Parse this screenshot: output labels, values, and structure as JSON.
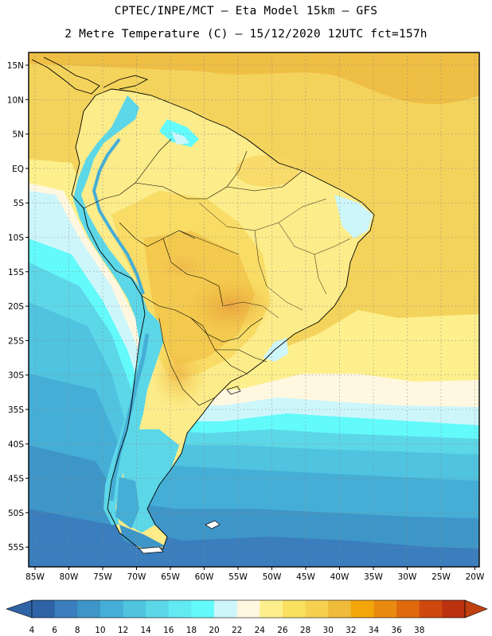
{
  "title_line1": "CPTEC/INPE/MCT –  Eta Model 15km – GFS",
  "title_line2": "2 Metre Temperature (C) – 15/12/2020 12UTC fct=157h",
  "lat_ticks": [
    "15N",
    "10N",
    "5N",
    "EQ",
    "5S",
    "10S",
    "15S",
    "20S",
    "25S",
    "30S",
    "35S",
    "40S",
    "45S",
    "50S",
    "55S"
  ],
  "lon_ticks": [
    "85W",
    "80W",
    "75W",
    "70W",
    "65W",
    "60W",
    "55W",
    "50W",
    "45W",
    "40W",
    "35W",
    "30W",
    "25W",
    "20W"
  ],
  "colorbar": {
    "labels": [
      "4",
      "6",
      "8",
      "10",
      "12",
      "14",
      "16",
      "18",
      "20",
      "22",
      "24",
      "26",
      "28",
      "30",
      "32",
      "34",
      "36",
      "38"
    ],
    "colors": [
      "#2e63a6",
      "#3a7ebd",
      "#3e96c8",
      "#45aed6",
      "#4fc3df",
      "#5cd7e8",
      "#62eaf2",
      "#63fafb",
      "#cdf6fb",
      "#fff7e0",
      "#fdf08c",
      "#f9e15f",
      "#f6d04f",
      "#eebb3a",
      "#f3a60b",
      "#ea8a10",
      "#df6a0d",
      "#cf480e",
      "#bb3210"
    ],
    "under_color": "#2e63a6",
    "over_color": "#c0400f"
  }
}
